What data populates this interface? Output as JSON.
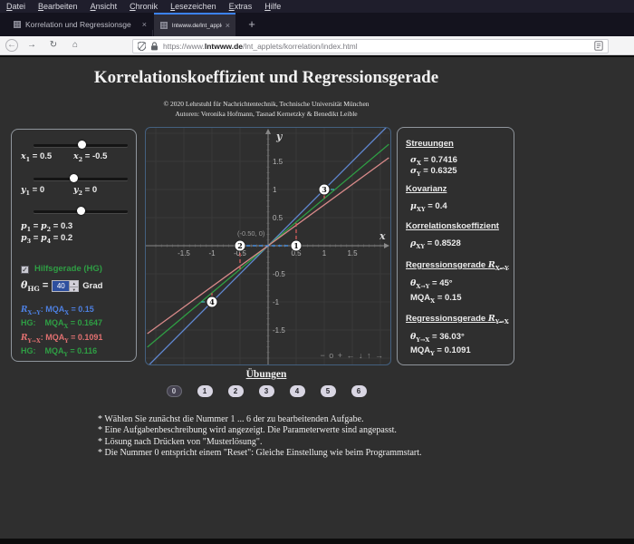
{
  "browser": {
    "menu_items": [
      "Datei",
      "Bearbeiten",
      "Ansicht",
      "Chronik",
      "Lesezeichen",
      "Extras",
      "Hilfe"
    ],
    "tabs": [
      {
        "title": "Korrelation und Regressionsge",
        "close_label": "×"
      },
      {
        "title": "lntwww.de/lnt_applets/korrelat",
        "close_label": "×",
        "active": true
      }
    ],
    "new_tab_label": "+",
    "icons": {
      "back": "←",
      "forward": "→",
      "reload": "↻",
      "home": "⌂",
      "checkmark": "✓",
      "spinner_up": "▲",
      "spinner_down": "▼"
    },
    "url_prefix": "https://www.",
    "url_domain": "lntwww.de",
    "url_path": "/lnt_applets/korrelation/index.html"
  },
  "page": {
    "title": "Korrelationskoeffizient und Regressionsgerade",
    "copyright": "© 2020 Lehrstuhl für Nachrichtentechnik, Technische Universität München",
    "authors": "Autoren: Veronika Hofmann, Tasnad Kernetzky & Benedikt Leible"
  },
  "controls": {
    "sliders": [
      {
        "name": "x-values",
        "thumb_pos": 0.51
      },
      {
        "name": "y-values",
        "thumb_pos": 0.42
      },
      {
        "name": "p-values",
        "thumb_pos": 0.5
      }
    ],
    "x1": [
      {
        "t": "v",
        "s": "x"
      },
      {
        "t": "b",
        "s": "1"
      },
      {
        "t": "p",
        "s": " = 0.5"
      }
    ],
    "x2": [
      {
        "t": "v",
        "s": "x"
      },
      {
        "t": "b",
        "s": "2"
      },
      {
        "t": "p",
        "s": " = -0.5"
      }
    ],
    "y1": [
      {
        "t": "v",
        "s": "y"
      },
      {
        "t": "b",
        "s": "1"
      },
      {
        "t": "p",
        "s": " = 0"
      }
    ],
    "y2": [
      {
        "t": "v",
        "s": "y"
      },
      {
        "t": "b",
        "s": "2"
      },
      {
        "t": "p",
        "s": " = 0"
      }
    ],
    "p12": [
      {
        "t": "v",
        "s": "p"
      },
      {
        "t": "b",
        "s": "1"
      },
      {
        "t": "p",
        "s": " = "
      },
      {
        "t": "v",
        "s": "p"
      },
      {
        "t": "b",
        "s": "2"
      },
      {
        "t": "p",
        "s": " = 0.3"
      }
    ],
    "p34": [
      {
        "t": "v",
        "s": "p"
      },
      {
        "t": "b",
        "s": "3"
      },
      {
        "t": "p",
        "s": " = "
      },
      {
        "t": "v",
        "s": "p"
      },
      {
        "t": "b",
        "s": "4"
      },
      {
        "t": "p",
        "s": " = 0.2"
      }
    ],
    "hg_checkbox_label": "Hilfsgerade (HG)",
    "hg_checked": true,
    "theta_label": [
      {
        "t": "v",
        "s": "θ"
      },
      {
        "t": "b",
        "s": "HG"
      },
      {
        "t": "p",
        "s": " ="
      }
    ],
    "theta_value": "40",
    "theta_unit": "Grad",
    "mqa_rows": [
      {
        "color": "#4d7fe0",
        "segs": [
          {
            "t": "v",
            "s": "R"
          },
          {
            "t": "b",
            "s": "X→Y"
          },
          {
            "t": "p",
            "s": ": MQA"
          },
          {
            "t": "b",
            "s": "X"
          },
          {
            "t": "p",
            "s": " = 0.15"
          }
        ]
      },
      {
        "color": "#2f9e44",
        "segs": [
          {
            "t": "p",
            "s": "HG:    MQA"
          },
          {
            "t": "b",
            "s": "X"
          },
          {
            "t": "p",
            "s": " = 0.1647"
          }
        ]
      },
      {
        "color": "#e07070",
        "segs": [
          {
            "t": "v",
            "s": "R"
          },
          {
            "t": "b",
            "s": "Y→X"
          },
          {
            "t": "p",
            "s": ": MQA"
          },
          {
            "t": "b",
            "s": "Y"
          },
          {
            "t": "p",
            "s": " = 0.1091"
          }
        ]
      },
      {
        "color": "#2f9e44",
        "segs": [
          {
            "t": "p",
            "s": "HG:    MQA"
          },
          {
            "t": "b",
            "s": "Y"
          },
          {
            "t": "p",
            "s": " = 0.116"
          }
        ]
      }
    ]
  },
  "stats": {
    "heading_streuungen": "Streuungen",
    "sigma_x": [
      {
        "t": "v",
        "s": "σ"
      },
      {
        "t": "b",
        "s": "X"
      },
      {
        "t": "p",
        "s": " = 0.7416"
      }
    ],
    "sigma_y": [
      {
        "t": "v",
        "s": "σ"
      },
      {
        "t": "b",
        "s": "Y"
      },
      {
        "t": "p",
        "s": " = 0.6325"
      }
    ],
    "heading_kovarianz": "Kovarianz",
    "mu_xy": [
      {
        "t": "v",
        "s": "μ"
      },
      {
        "t": "b",
        "s": "XY"
      },
      {
        "t": "p",
        "s": " = 0.4"
      }
    ],
    "heading_korrelation": "Korrelationskoeffizient",
    "rho_xy": [
      {
        "t": "v",
        "s": "ρ"
      },
      {
        "t": "b",
        "s": "XY"
      },
      {
        "t": "p",
        "s": " = 0.8528"
      }
    ],
    "heading_reg_xy": [
      {
        "t": "p",
        "s": "Regressionsgerade "
      },
      {
        "t": "v",
        "s": "R"
      },
      {
        "t": "b",
        "s": "X→Y"
      }
    ],
    "theta_xy": [
      {
        "t": "v",
        "s": "θ"
      },
      {
        "t": "b",
        "s": "X→Y"
      },
      {
        "t": "p",
        "s": " = 45°"
      }
    ],
    "mqa_x": [
      {
        "t": "p",
        "s": "MQA"
      },
      {
        "t": "b",
        "s": "X"
      },
      {
        "t": "p",
        "s": " = 0.15"
      }
    ],
    "heading_reg_yx": [
      {
        "t": "p",
        "s": "Regressionsgerade "
      },
      {
        "t": "v",
        "s": "R"
      },
      {
        "t": "b",
        "s": "Y→X"
      }
    ],
    "theta_yx": [
      {
        "t": "v",
        "s": "θ"
      },
      {
        "t": "b",
        "s": "Y→X"
      },
      {
        "t": "p",
        "s": " = 36.03°"
      }
    ],
    "mqa_y": [
      {
        "t": "p",
        "s": "MQA"
      },
      {
        "t": "b",
        "s": "Y"
      },
      {
        "t": "p",
        "s": " = 0.1091"
      }
    ]
  },
  "uebungen": {
    "heading": "Übungen",
    "buttons": [
      "0",
      "1",
      "2",
      "3",
      "4",
      "5",
      "6"
    ],
    "active_button": "0"
  },
  "instructions": [
    "* Wählen Sie zunächst die Nummer 1 ... 6 der zu bearbeitenden Aufgabe.",
    "* Eine Aufgabenbeschreibung wird angezeigt. Die Parameterwerte sind angepasst.",
    "* Lösung nach Drücken von \"Musterlösung\".",
    "* Die Nummer 0 entspricht einem \"Reset\": Gleiche Einstellung wie beim Programmstart."
  ],
  "chart_data": {
    "type": "scatter",
    "xlabel": "x",
    "ylabel": "y",
    "xlim": [
      -2.15,
      2.15
    ],
    "ylim": [
      -2.08,
      2.08
    ],
    "x_ticks": [
      -1.5,
      -1,
      -0.5,
      0.5,
      1,
      1.5
    ],
    "y_ticks": [
      1.5,
      1,
      0.5,
      -0.5,
      -1,
      -1.5
    ],
    "grid": true,
    "grid_step": 0.5,
    "points": [
      {
        "label": "1",
        "x": 0.5,
        "y": 0
      },
      {
        "label": "2",
        "x": -0.5,
        "y": 0,
        "annotation": "(-0.50, 0)"
      },
      {
        "label": "3",
        "x": 1,
        "y": 1
      },
      {
        "label": "4",
        "x": -1,
        "y": -1
      }
    ],
    "lines": [
      {
        "name": "regressionsgerade-RX→Y",
        "slope": 1.0,
        "intercept": 0,
        "angle_deg": 45,
        "color": "#6189d4"
      },
      {
        "name": "hilfsgerade-HG",
        "slope": 0.8391,
        "intercept": 0,
        "angle_deg": 40,
        "color": "#2f9e44"
      },
      {
        "name": "regressionsgerade-RY→X",
        "slope": 0.7277,
        "intercept": 0,
        "angle_deg": 36.03,
        "color": "#d98a8a"
      }
    ],
    "dashes": [
      {
        "x1": -0.5,
        "y1": 0,
        "x2": 0.5,
        "y2": 0,
        "color": "#4da0ff"
      },
      {
        "x1": 0.5,
        "y1": 0,
        "x2": 0.5,
        "y2": 0.42,
        "color": "#e06060"
      },
      {
        "x1": -0.5,
        "y1": -0.42,
        "x2": -0.5,
        "y2": 0,
        "color": "#e06060"
      },
      {
        "x1": 1,
        "y1": 0.84,
        "x2": 1,
        "y2": 1,
        "color": "#e06060"
      },
      {
        "x1": -1,
        "y1": -1,
        "x2": -1,
        "y2": -0.84,
        "color": "#e06060"
      },
      {
        "x1": 1,
        "y1": 1,
        "x2": 1.19,
        "y2": 1,
        "color": "#45b8b8"
      },
      {
        "x1": -1.19,
        "y1": -1,
        "x2": -1,
        "y2": -1,
        "color": "#45b8b8"
      }
    ],
    "nav_controls": [
      "−",
      "o",
      "+",
      "←",
      "↓",
      "↑",
      "→"
    ]
  },
  "colors": {
    "page_bg": "#2f2f2f",
    "accent_blue": "#4d7fe0",
    "accent_green": "#2f9e44",
    "accent_red": "#e07070",
    "active_tab_stripe": "#3b82f6"
  }
}
